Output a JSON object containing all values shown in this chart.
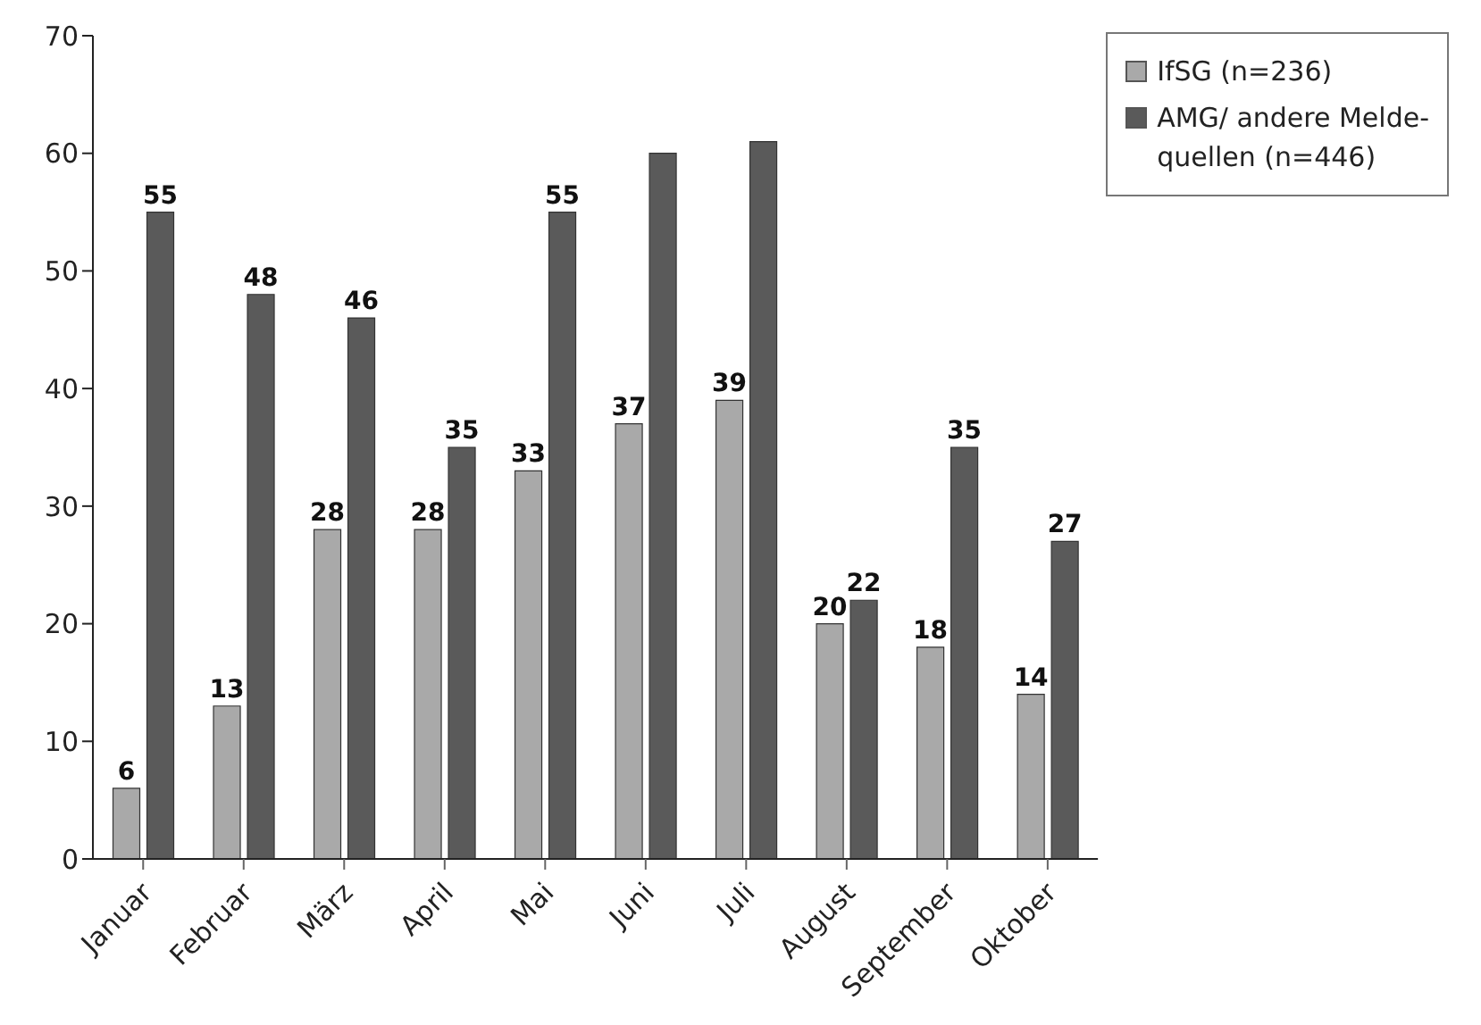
{
  "chart_data": {
    "type": "bar",
    "categories": [
      "Januar",
      "Februar",
      "März",
      "April",
      "Mai",
      "Juni",
      "Juli",
      "August",
      "September",
      "Oktober"
    ],
    "series": [
      {
        "name": "IfSG (n=236)",
        "color": "#a9a9a9",
        "values": [
          6,
          13,
          28,
          28,
          33,
          37,
          39,
          20,
          18,
          14
        ],
        "value_labels": [
          "6",
          "13",
          "28",
          "28",
          "33",
          "37",
          "39",
          "20",
          "18",
          "14"
        ]
      },
      {
        "name": "AMG/ andere Melde-\nquellen (n=446)",
        "color": "#5a5a5a",
        "values": [
          55,
          48,
          46,
          35,
          55,
          60,
          61,
          22,
          35,
          27
        ],
        "value_labels": [
          "55",
          "48",
          "46",
          "35",
          "55",
          null,
          null,
          "22",
          "35",
          "27"
        ]
      }
    ],
    "ylim": [
      0,
      70
    ],
    "yticks": [
      0,
      10,
      20,
      30,
      40,
      50,
      60,
      70
    ],
    "legend": "top right"
  }
}
